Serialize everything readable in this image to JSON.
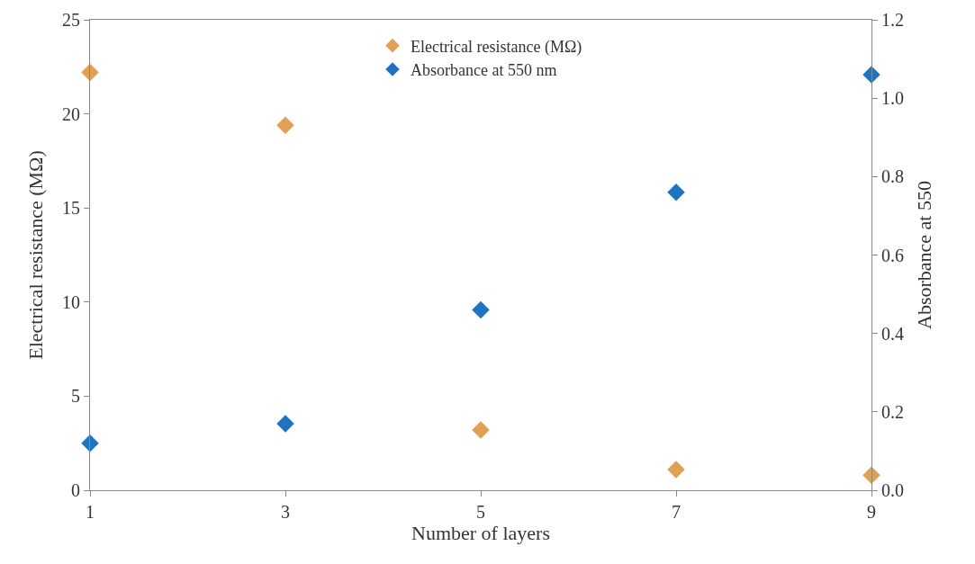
{
  "chart_data": {
    "type": "scatter",
    "xlabel": "Number of layers",
    "ylabel": "Electrical resistance (MΩ)",
    "y2label": "Absorbance at 550",
    "x": [
      1,
      3,
      5,
      7,
      9
    ],
    "series": [
      {
        "name": "Electrical resistance (MΩ)",
        "color": "#e0a055",
        "values": [
          22.2,
          19.4,
          3.2,
          1.1,
          0.8
        ]
      },
      {
        "name": "Absorbance at 550 nm",
        "color": "#1f74c2",
        "values": [
          0.12,
          0.17,
          0.46,
          0.76,
          1.06
        ],
        "axis": "y2"
      }
    ],
    "xlim": [
      1,
      9
    ],
    "xticks": [
      1,
      3,
      5,
      7,
      9
    ],
    "ylim": [
      0,
      25
    ],
    "yticks": [
      0,
      5,
      10,
      15,
      20,
      25
    ],
    "y2lim": [
      0,
      1.2
    ],
    "y2ticks": [
      {
        "value": 0,
        "label": "0.0"
      },
      {
        "value": 0.2,
        "label": "0.2"
      },
      {
        "value": 0.4,
        "label": "0.4"
      },
      {
        "value": 0.6,
        "label": "0.6"
      },
      {
        "value": 0.8,
        "label": "0.8"
      },
      {
        "value": 1.0,
        "label": "1.0"
      },
      {
        "value": 1.2,
        "label": "1.2"
      }
    ],
    "marker": "diamond",
    "legend": "top"
  }
}
